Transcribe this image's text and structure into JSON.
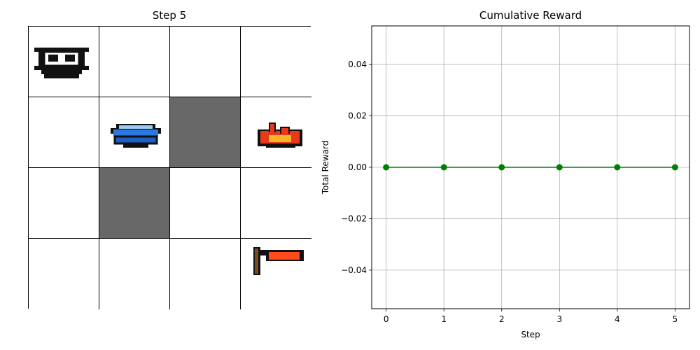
{
  "gridworld": {
    "title": "Step 5",
    "rows": 4,
    "cols": 4,
    "cells": [
      {
        "row": 0,
        "col": 0,
        "type": "robot-agent"
      },
      {
        "row": 1,
        "col": 1,
        "type": "water-pot"
      },
      {
        "row": 1,
        "col": 2,
        "type": "wall"
      },
      {
        "row": 1,
        "col": 3,
        "type": "fire"
      },
      {
        "row": 2,
        "col": 1,
        "type": "wall"
      },
      {
        "row": 3,
        "col": 3,
        "type": "axe"
      }
    ],
    "colors": {
      "wall": "#686868",
      "grid_line": "#000000"
    }
  },
  "chart_data": {
    "type": "line",
    "title": "Cumulative Reward",
    "xlabel": "Step",
    "ylabel": "Total Reward",
    "x": [
      0,
      1,
      2,
      3,
      4,
      5
    ],
    "series": [
      {
        "values": [
          0,
          0,
          0,
          0,
          0,
          0
        ],
        "color": "#008000",
        "marker": "circle"
      }
    ],
    "xlim": [
      -0.25,
      5.25
    ],
    "ylim": [
      -0.055,
      0.055
    ],
    "xticks": [
      "0",
      "1",
      "2",
      "3",
      "4",
      "5"
    ],
    "yticks": [
      "−0.04",
      "−0.02",
      "0.00",
      "0.02",
      "0.04"
    ],
    "ytick_values": [
      -0.04,
      -0.02,
      0.0,
      0.02,
      0.04
    ],
    "grid": true,
    "legend": "none"
  }
}
